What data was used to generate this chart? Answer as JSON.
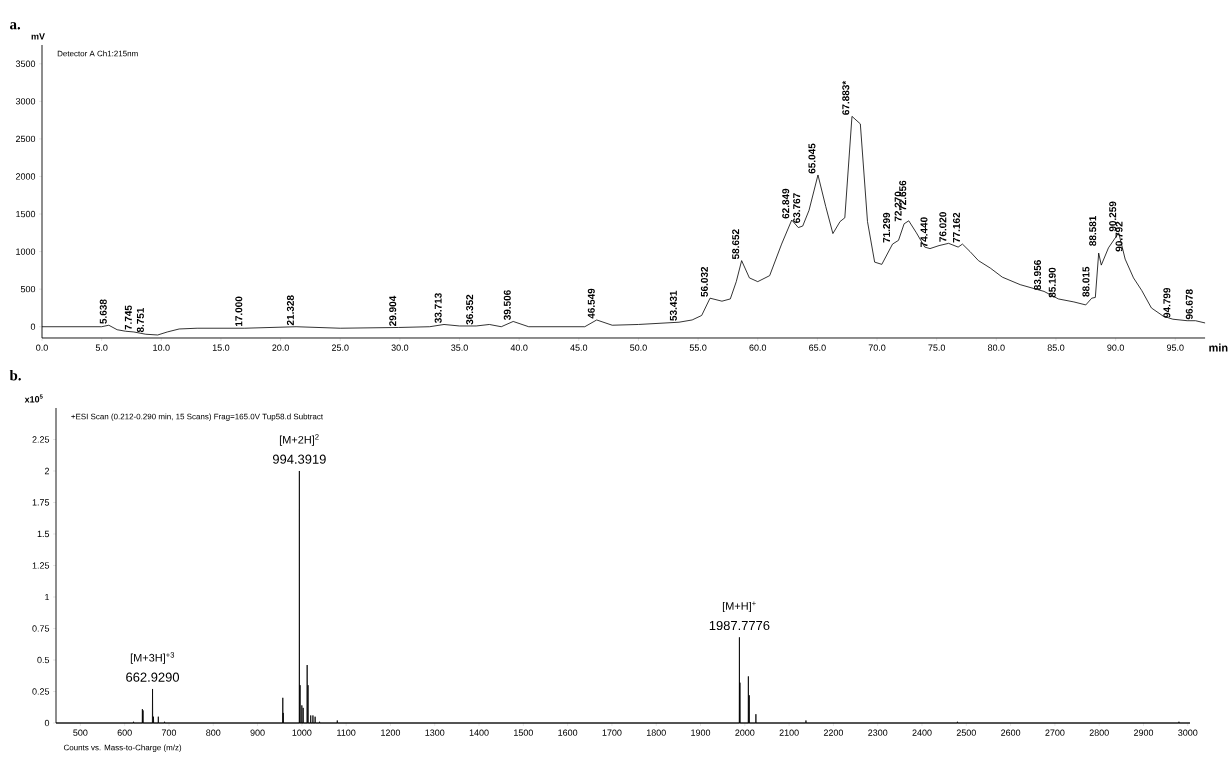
{
  "chart_data": [
    {
      "type": "line",
      "title": "a.",
      "ylabel": "mV",
      "xlabel": "min",
      "xlim": [
        0,
        97.5
      ],
      "ylim": [
        -150,
        3750
      ],
      "xticks": [
        {
          "value": 0,
          "label": "0.0"
        },
        {
          "value": 5,
          "label": "5.0"
        },
        {
          "value": 10,
          "label": "10.0"
        },
        {
          "value": 15,
          "label": "15.0"
        },
        {
          "value": 20,
          "label": "20.0"
        },
        {
          "value": 25,
          "label": "25.0"
        },
        {
          "value": 30,
          "label": "30.0"
        },
        {
          "value": 35,
          "label": "35.0"
        },
        {
          "value": 40,
          "label": "40.0"
        },
        {
          "value": 45,
          "label": "45.0"
        },
        {
          "value": 50,
          "label": "50.0"
        },
        {
          "value": 55,
          "label": "55.0"
        },
        {
          "value": 60,
          "label": "60.0"
        },
        {
          "value": 65,
          "label": "65.0"
        },
        {
          "value": 70,
          "label": "70.0"
        },
        {
          "value": 75,
          "label": "75.0"
        },
        {
          "value": 80,
          "label": "80.0"
        },
        {
          "value": 85,
          "label": "85.0"
        },
        {
          "value": 90,
          "label": "90.0"
        },
        {
          "value": 95,
          "label": "95.0"
        }
      ],
      "yticks": [
        0,
        500,
        1000,
        1500,
        2000,
        2500,
        3000,
        3500
      ],
      "series": [
        {
          "color": "#000000",
          "x": [
            0,
            3,
            5,
            5.6,
            6.3,
            7,
            7.7,
            8.7,
            9.7,
            10.5,
            11.5,
            13,
            17,
            21.3,
            25,
            29.9,
            32.5,
            33.7,
            35,
            36.4,
            37.5,
            38.5,
            39.5,
            40.8,
            43,
            45.5,
            46.5,
            47.8,
            50,
            53.4,
            54.5,
            55.3,
            56,
            57,
            57.7,
            58.2,
            58.65,
            59.3,
            60,
            61,
            62,
            62.85,
            63.4,
            63.77,
            64.3,
            65.05,
            65.7,
            66.3,
            66.9,
            67.3,
            67.9,
            68.6,
            69.2,
            69.8,
            70.4,
            71.3,
            71.8,
            72.27,
            72.66,
            73.3,
            74,
            74.44,
            75.2,
            76,
            76.8,
            77.16,
            77.8,
            78.5,
            79.5,
            80.5,
            82,
            84,
            85.2,
            86.5,
            87.5,
            88,
            88.3,
            88.58,
            88.8,
            89.4,
            90.26,
            90.8,
            91.5,
            92.2,
            93,
            94,
            94.8,
            96,
            96.7,
            97.5
          ],
          "values": [
            0,
            0,
            0,
            20,
            -40,
            -60,
            -70,
            -100,
            -110,
            -70,
            -30,
            -20,
            -20,
            0,
            -20,
            -10,
            0,
            30,
            10,
            10,
            30,
            0,
            70,
            0,
            0,
            0,
            90,
            20,
            30,
            60,
            90,
            150,
            380,
            340,
            370,
            600,
            880,
            650,
            600,
            680,
            1100,
            1420,
            1320,
            1340,
            1550,
            2020,
            1600,
            1240,
            1400,
            1450,
            2800,
            2700,
            1400,
            860,
            830,
            1100,
            1150,
            1370,
            1410,
            1250,
            1060,
            1040,
            1080,
            1110,
            1060,
            1100,
            1000,
            880,
            780,
            660,
            560,
            470,
            370,
            330,
            290,
            380,
            390,
            980,
            820,
            1050,
            1250,
            900,
            650,
            480,
            250,
            140,
            100,
            80,
            80,
            50
          ]
        }
      ],
      "annotations": [
        "Detector A Ch1:215nm",
        {
          "text": "5.638",
          "x": 5.638,
          "y": 20
        },
        {
          "text": "7.745",
          "x": 7.745,
          "y": -60
        },
        {
          "text": "8.751",
          "x": 8.751,
          "y": -100
        },
        {
          "text": "17.000",
          "x": 17.0,
          "y": -15
        },
        {
          "text": "21.328",
          "x": 21.328,
          "y": 0
        },
        {
          "text": "29.904",
          "x": 29.904,
          "y": -10
        },
        {
          "text": "33.713",
          "x": 33.713,
          "y": 30
        },
        {
          "text": "36.352",
          "x": 36.352,
          "y": 10
        },
        {
          "text": "39.506",
          "x": 39.506,
          "y": 70
        },
        {
          "text": "46.549",
          "x": 46.549,
          "y": 90
        },
        {
          "text": "53.431",
          "x": 53.431,
          "y": 60
        },
        {
          "text": "56.032",
          "x": 56.032,
          "y": 380
        },
        {
          "text": "58.652",
          "x": 58.652,
          "y": 880
        },
        {
          "text": "62.849",
          "x": 62.849,
          "y": 1420
        },
        {
          "text": "63.767",
          "x": 63.767,
          "y": 1340
        },
        {
          "text": "65.045",
          "x": 65.045,
          "y": 2020
        },
        {
          "text": "67.883*",
          "x": 67.883,
          "y": 2800
        },
        {
          "text": "71.299",
          "x": 71.299,
          "y": 1100
        },
        {
          "text": "72.270",
          "x": 72.27,
          "y": 1370
        },
        {
          "text": "72.656",
          "x": 72.656,
          "y": 1410
        },
        {
          "text": "74.440",
          "x": 74.44,
          "y": 1040
        },
        {
          "text": "76.020",
          "x": 76.02,
          "y": 1110
        },
        {
          "text": "77.162",
          "x": 77.162,
          "y": 1100
        },
        {
          "text": "83.956",
          "x": 83.956,
          "y": 470
        },
        {
          "text": "85.190",
          "x": 85.19,
          "y": 370
        },
        {
          "text": "88.015",
          "x": 88.015,
          "y": 380
        },
        {
          "text": "88.581",
          "x": 88.581,
          "y": 980
        },
        {
          "text": "90.259",
          "x": 90.259,
          "y": 1250
        },
        {
          "text": "90.792",
          "x": 90.792,
          "y": 900
        },
        {
          "text": "94.799",
          "x": 94.799,
          "y": 100
        },
        {
          "text": "96.678",
          "x": 96.678,
          "y": 80
        }
      ]
    },
    {
      "type": "line",
      "title": "b.",
      "ylabel": "x10$^{5}$",
      "xlabel": "Counts vs. Mass-to-Charge (m/z)",
      "xlim": [
        445,
        3005
      ],
      "ylim": [
        0,
        2.5
      ],
      "xticks": [
        500,
        600,
        700,
        800,
        900,
        1000,
        1100,
        1200,
        1300,
        1400,
        1500,
        1600,
        1700,
        1800,
        1900,
        2000,
        2100,
        2200,
        2300,
        2400,
        2500,
        2600,
        2700,
        2800,
        2900,
        3000
      ],
      "yticks": [
        0,
        0.25,
        0.5,
        0.75,
        1,
        1.25,
        1.5,
        1.75,
        2,
        2.25
      ],
      "series": [
        {
          "color": "#000000",
          "x": [
            445,
            619.6,
            620,
            620.4,
            639.6,
            640,
            640.4,
            641.1,
            641.5,
            641.9,
            662.53,
            662.93,
            663.33,
            664.6,
            665,
            665.4,
            675.6,
            676,
            676.4,
            689.6,
            690,
            690.4,
            956.6,
            957,
            957.3,
            957.7,
            958,
            958.4,
            993.99,
            994.39,
            994.8,
            995.6,
            996,
            996.4,
            999.6,
            1000,
            1000.4,
            1002.6,
            1003,
            1003.4,
            1011.6,
            1012,
            1012.4,
            1013.6,
            1014,
            1014.4,
            1019.6,
            1020,
            1020.4,
            1024.6,
            1025,
            1025.4,
            1029.6,
            1030,
            1030.4,
            1039.6,
            1040,
            1040.4,
            1079.6,
            1080,
            1080.4,
            1987.38,
            1987.78,
            1988.2,
            1988.6,
            1989,
            1989.4,
            2007.6,
            2008,
            2008.4,
            2009.6,
            2010,
            2010.4,
            2024.6,
            2025,
            2025.4,
            2137.6,
            2138,
            2138.4,
            2479.6,
            2480,
            2480.4,
            2979.6,
            2980,
            2980.4,
            3005
          ],
          "values": [
            0,
            0,
            0.01,
            0,
            0,
            0.11,
            0,
            0,
            0.1,
            0,
            0,
            0.27,
            0,
            0,
            0.05,
            0,
            0,
            0.05,
            0,
            0,
            0.01,
            0,
            0,
            0.2,
            0,
            0,
            0.08,
            0,
            0,
            2.0,
            0,
            0,
            0.3,
            0,
            0,
            0.14,
            0,
            0,
            0.12,
            0,
            0,
            0.46,
            0,
            0,
            0.3,
            0,
            0,
            0.06,
            0,
            0,
            0.06,
            0,
            0,
            0.05,
            0,
            0,
            0.01,
            0,
            0,
            0.02,
            0,
            0,
            0.68,
            0,
            0,
            0.32,
            0,
            0,
            0.37,
            0,
            0,
            0.22,
            0,
            0,
            0.07,
            0,
            0,
            0.02,
            0,
            0,
            0.01,
            0,
            0,
            0.01,
            0,
            0
          ]
        }
      ],
      "annotations": [
        "+ESI Scan (0.212-0.290 min, 15 Scans) Frag=165.0V Tup58.d  Subtract",
        {
          "text": "[M+3H]$^{+3}$",
          "x": 662.93,
          "y": 0.27
        },
        {
          "text": "662.9290",
          "x": 662.93,
          "y": 0.27
        },
        {
          "text": "[M+2H]$^{2}$",
          "x": 994.39,
          "y": 2.0
        },
        {
          "text": "994.3919",
          "x": 994.39,
          "y": 2.0
        },
        {
          "text": "[M+H]$^{+}$",
          "x": 1987.78,
          "y": 0.68
        },
        {
          "text": "1987.7776",
          "x": 1987.78,
          "y": 0.68
        }
      ]
    }
  ]
}
